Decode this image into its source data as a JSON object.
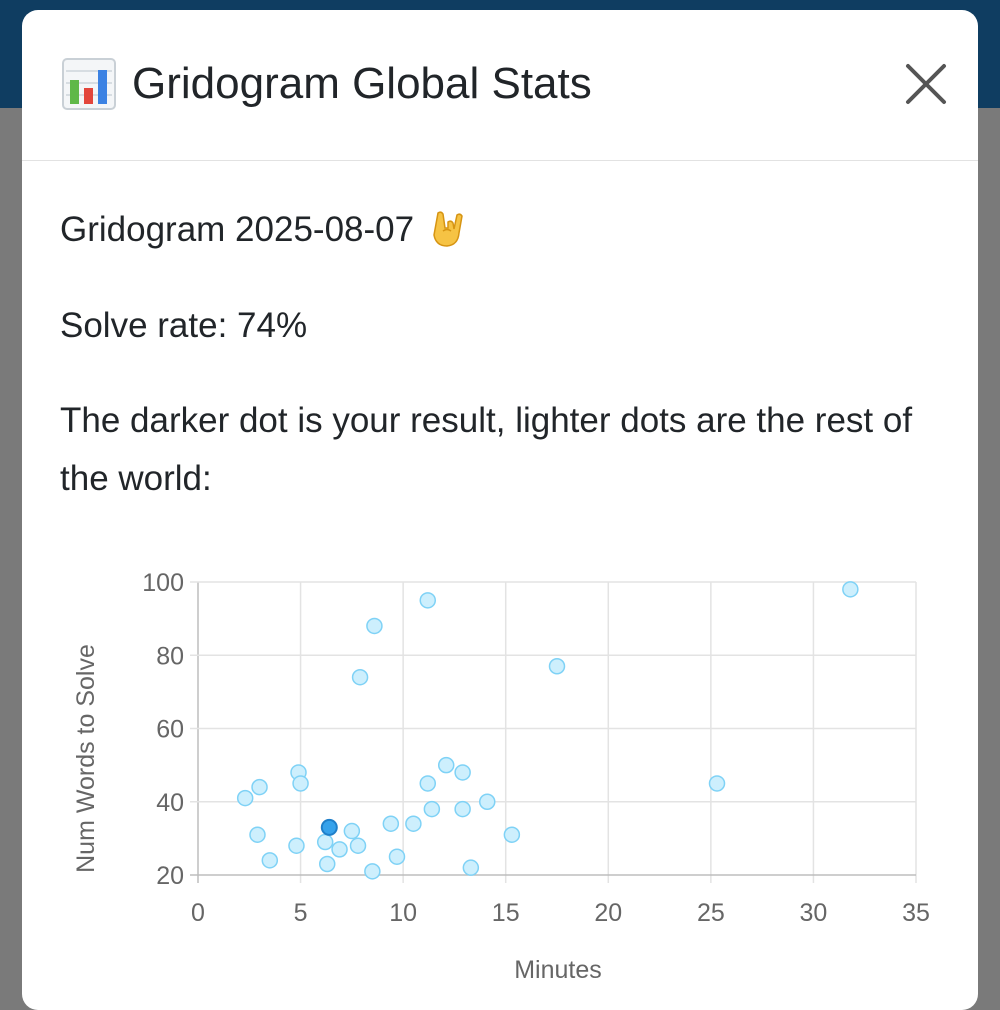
{
  "modal": {
    "title": "Gridogram Global Stats",
    "title_icon": "bar-chart-icon",
    "close_icon": "close-icon"
  },
  "content": {
    "puzzle": "Gridogram 2025-08-07",
    "puzzle_emoji": "rock-on-hand-icon",
    "solve_rate": "Solve rate: 74%",
    "explanation": "The darker dot is your result, lighter dots are the rest of the world:"
  },
  "chart_data": {
    "type": "scatter",
    "xlabel": "Minutes",
    "ylabel": "Num Words to Solve",
    "xlim": [
      0,
      35
    ],
    "ylim": [
      20,
      100
    ],
    "xticks": [
      0,
      5,
      10,
      15,
      20,
      25,
      30,
      35
    ],
    "yticks": [
      20,
      40,
      60,
      80,
      100
    ],
    "grid": true,
    "colors": {
      "world": "#cdeffd",
      "world_stroke": "#7fd2f6",
      "you": "#36a2eb",
      "you_stroke": "#1f7fc9"
    },
    "series": [
      {
        "points": [
          [
            2.3,
            41
          ],
          [
            3.0,
            44
          ],
          [
            2.9,
            31
          ],
          [
            3.5,
            24
          ],
          [
            4.9,
            48
          ],
          [
            5.0,
            45
          ],
          [
            4.8,
            28
          ],
          [
            6.2,
            29
          ],
          [
            6.3,
            23
          ],
          [
            6.9,
            27
          ],
          [
            7.5,
            32
          ],
          [
            7.8,
            28
          ],
          [
            7.9,
            74
          ],
          [
            8.6,
            88
          ],
          [
            8.5,
            21
          ],
          [
            9.4,
            34
          ],
          [
            9.7,
            25
          ],
          [
            10.5,
            34
          ],
          [
            11.2,
            95
          ],
          [
            11.2,
            45
          ],
          [
            11.4,
            38
          ],
          [
            12.1,
            50
          ],
          [
            12.9,
            48
          ],
          [
            12.9,
            38
          ],
          [
            13.3,
            22
          ],
          [
            14.1,
            40
          ],
          [
            15.3,
            31
          ],
          [
            17.5,
            77
          ],
          [
            25.3,
            45
          ],
          [
            31.8,
            98
          ]
        ]
      },
      {
        "points": [
          [
            6.4,
            33
          ]
        ]
      }
    ]
  }
}
